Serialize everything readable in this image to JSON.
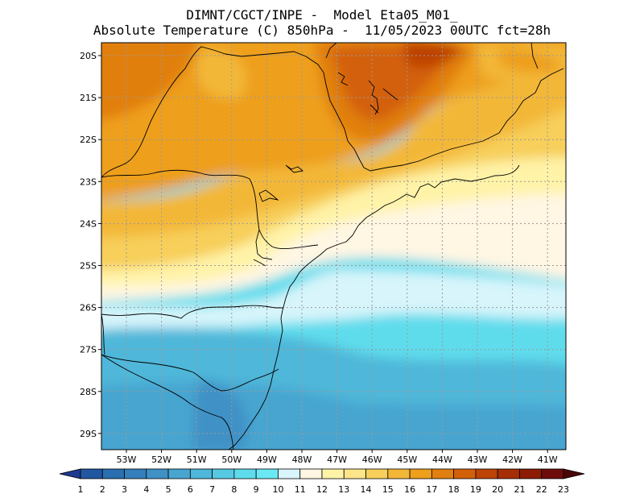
{
  "header": {
    "line1": "DIMNT/CGCT/INPE -  Model Eta05_M01_",
    "line2": "Absolute Temperature (C) 850hPa -  11/05/2023 00UTC fct=28h"
  },
  "map": {
    "lat_labels": [
      "20S",
      "21S",
      "22S",
      "23S",
      "24S",
      "25S",
      "26S",
      "27S",
      "28S",
      "29S"
    ],
    "lon_labels": [
      "53W",
      "52W",
      "51W",
      "50W",
      "49W",
      "48W",
      "47W",
      "46W",
      "45W",
      "44W",
      "43W",
      "42W",
      "41W"
    ],
    "grid": "dotted"
  },
  "colorbar": {
    "values": [
      "1",
      "2",
      "3",
      "4",
      "5",
      "6",
      "7",
      "8",
      "9",
      "10",
      "11",
      "12",
      "13",
      "14",
      "15",
      "16",
      "17",
      "18",
      "19",
      "20",
      "21",
      "22",
      "23"
    ],
    "colors": [
      "#1e3a8f",
      "#2156a0",
      "#2a6fb0",
      "#357fbc",
      "#3f91c6",
      "#47a5d0",
      "#4fb7d9",
      "#57c9e2",
      "#5fdcec",
      "#6ae9f4",
      "#d7f5fb",
      "#fff6e3",
      "#fff3a8",
      "#fde58a",
      "#f7cf5a",
      "#f3b738",
      "#ee9f1c",
      "#e17f10",
      "#d3610a",
      "#bd4306",
      "#a62e04",
      "#8c1c03",
      "#6e0b0b",
      "#4a0606"
    ]
  }
}
